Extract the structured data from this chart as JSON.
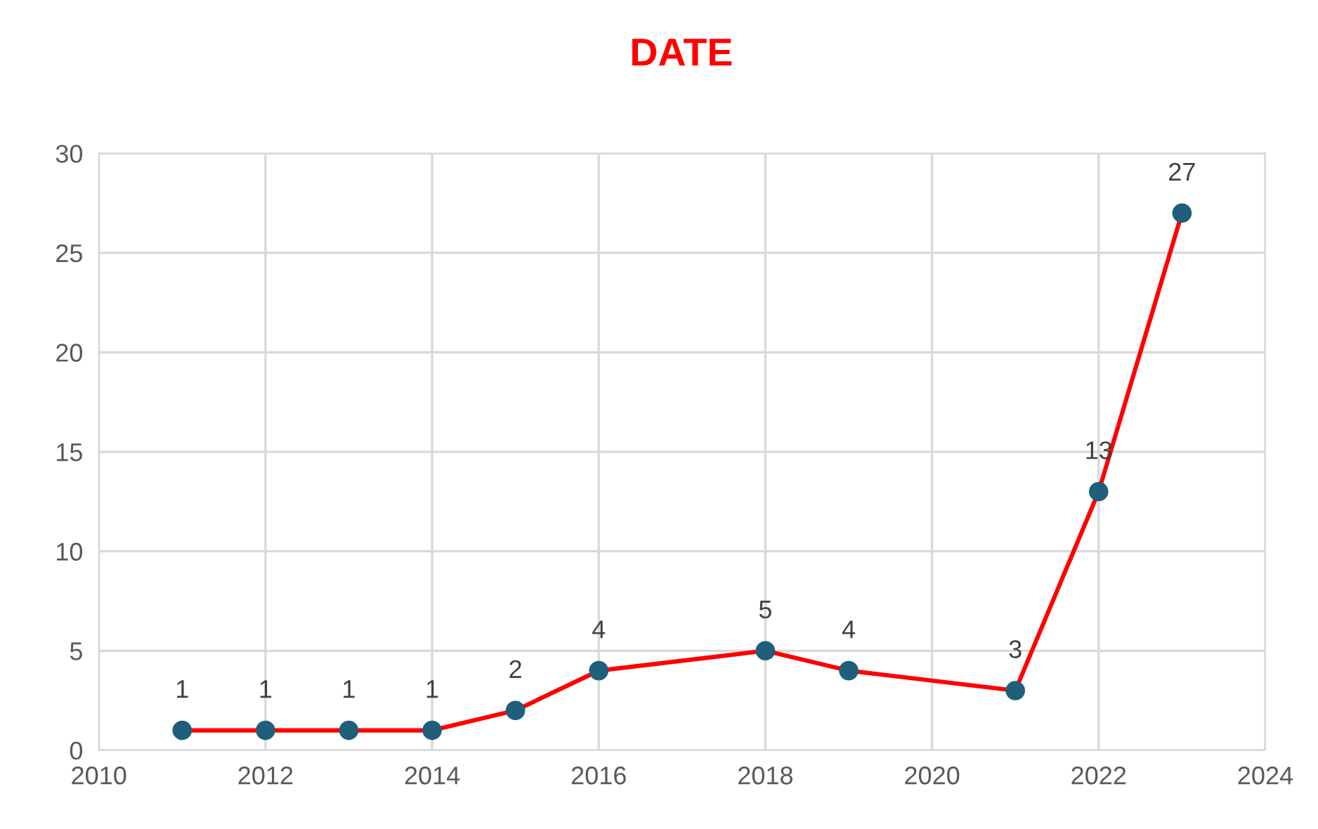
{
  "chart_data": {
    "type": "line",
    "title": "DATE",
    "x": [
      2011,
      2012,
      2013,
      2014,
      2015,
      2016,
      2018,
      2019,
      2021,
      2022,
      2023
    ],
    "series": [
      {
        "color": "#ff0000",
        "colors": [
          "#1f5f7a",
          "#1f5f7a",
          "#1f5f7a",
          "#1f5f7a",
          "#1f5f7a",
          "#1f5f7a",
          "#1f5f7a",
          "#1f5f7a",
          "#1f5f7a",
          "#1f5f7a",
          "#1f5f7a"
        ],
        "values": [
          1,
          1,
          1,
          1,
          2,
          4,
          5,
          4,
          3,
          13,
          27
        ]
      }
    ],
    "xlim": [
      2010,
      2024
    ],
    "xticks": [
      2010,
      2012,
      2014,
      2016,
      2018,
      2020,
      2022,
      2024
    ],
    "ylim": [
      0,
      30
    ],
    "yticks": [
      0,
      5,
      10,
      15,
      20,
      25,
      30
    ],
    "grid": true,
    "marker": "circle",
    "line_style": "solid",
    "data_labels": true,
    "legend": false
  }
}
